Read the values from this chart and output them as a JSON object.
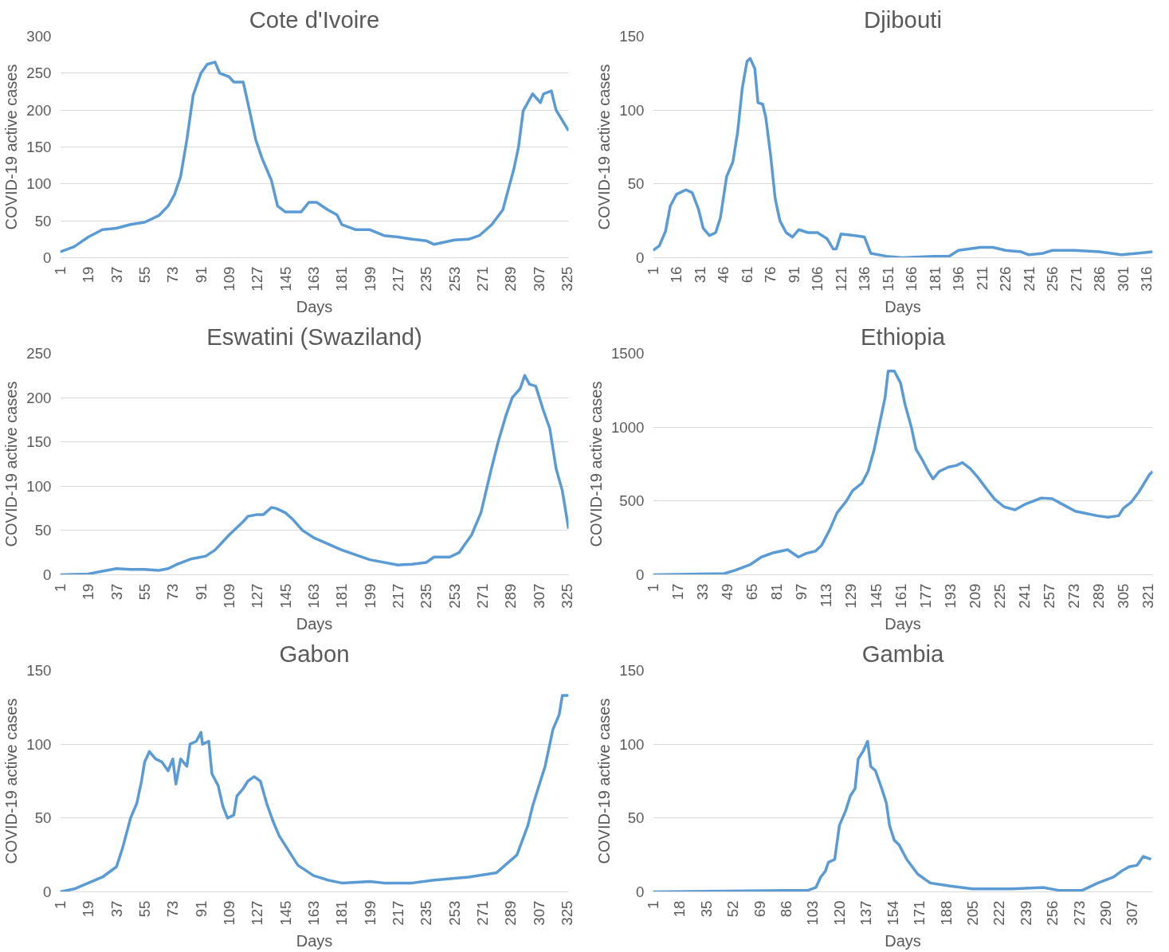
{
  "chart_data": [
    {
      "type": "line",
      "title": "Cote d'Ivoire",
      "xlabel": "Days",
      "ylabel": "COVID-19 active cases",
      "color": "#5b9bd5",
      "grid": "y",
      "line_style": "solid",
      "xlim": [
        1,
        326
      ],
      "ylim": [
        0,
        300
      ],
      "yticks": [
        0,
        50,
        100,
        150,
        200,
        250,
        300
      ],
      "xticks": [
        1,
        19,
        37,
        55,
        73,
        91,
        109,
        127,
        145,
        163,
        181,
        199,
        217,
        235,
        253,
        271,
        289,
        307,
        325
      ],
      "x": [
        1,
        10,
        19,
        28,
        37,
        46,
        55,
        64,
        70,
        74,
        78,
        82,
        86,
        91,
        95,
        100,
        103,
        109,
        112,
        118,
        122,
        126,
        130,
        136,
        140,
        145,
        155,
        160,
        165,
        172,
        178,
        181,
        190,
        199,
        208,
        217,
        226,
        235,
        240,
        253,
        262,
        269,
        277,
        284,
        291,
        294,
        297,
        303,
        308,
        310,
        315,
        318,
        326
      ],
      "values": [
        8,
        15,
        28,
        38,
        40,
        45,
        48,
        57,
        70,
        85,
        110,
        160,
        220,
        250,
        262,
        265,
        250,
        245,
        238,
        238,
        200,
        160,
        135,
        105,
        70,
        62,
        62,
        75,
        75,
        65,
        58,
        45,
        38,
        38,
        30,
        28,
        25,
        23,
        18,
        24,
        25,
        30,
        45,
        65,
        120,
        150,
        199,
        222,
        210,
        222,
        226,
        200,
        172
      ]
    },
    {
      "type": "line",
      "title": "Djibouti",
      "xlabel": "Days",
      "ylabel": "COVID-19 active cases",
      "color": "#5b9bd5",
      "grid": "y",
      "line_style": "solid",
      "xlim": [
        1,
        320
      ],
      "ylim": [
        0,
        150
      ],
      "yticks": [
        0,
        50,
        100,
        150
      ],
      "xticks": [
        1,
        16,
        31,
        46,
        61,
        76,
        91,
        106,
        121,
        136,
        151,
        166,
        181,
        196,
        211,
        226,
        241,
        256,
        271,
        286,
        301,
        316
      ],
      "x": [
        1,
        5,
        9,
        12,
        16,
        22,
        26,
        30,
        33,
        37,
        41,
        44,
        48,
        52,
        55,
        58,
        61,
        63,
        66,
        68,
        71,
        73,
        76,
        79,
        82,
        86,
        90,
        94,
        100,
        106,
        112,
        116,
        118,
        121,
        130,
        136,
        140,
        150,
        160,
        180,
        190,
        196,
        210,
        218,
        226,
        236,
        241,
        250,
        256,
        270,
        286,
        300,
        310,
        320
      ],
      "values": [
        5,
        8,
        18,
        35,
        43,
        46,
        44,
        33,
        20,
        15,
        17,
        27,
        55,
        65,
        85,
        115,
        133,
        135,
        128,
        105,
        104,
        95,
        70,
        40,
        25,
        17,
        14,
        19,
        17,
        17,
        13,
        6,
        6,
        16,
        15,
        14,
        3,
        1,
        0,
        1,
        1,
        5,
        7,
        7,
        5,
        4,
        2,
        3,
        5,
        5,
        4,
        2,
        3,
        4
      ]
    },
    {
      "type": "line",
      "title": "Eswatini (Swaziland)",
      "xlabel": "Days",
      "ylabel": "COVID-19 active cases",
      "color": "#5b9bd5",
      "grid": "y",
      "line_style": "solid",
      "xlim": [
        1,
        326
      ],
      "ylim": [
        0,
        250
      ],
      "yticks": [
        0,
        50,
        100,
        150,
        200,
        250
      ],
      "xticks": [
        1,
        19,
        37,
        55,
        73,
        91,
        109,
        127,
        145,
        163,
        181,
        199,
        217,
        235,
        253,
        271,
        289,
        307,
        325
      ],
      "x": [
        1,
        19,
        28,
        37,
        46,
        55,
        64,
        70,
        76,
        85,
        94,
        100,
        109,
        118,
        121,
        127,
        131,
        136,
        139,
        145,
        150,
        156,
        163,
        172,
        181,
        199,
        217,
        226,
        235,
        240,
        250,
        256,
        260,
        264,
        270,
        276,
        281,
        286,
        290,
        295,
        298,
        301,
        305,
        310,
        314,
        318,
        322,
        326
      ],
      "values": [
        0,
        1,
        4,
        7,
        6,
        6,
        5,
        7,
        12,
        18,
        21,
        28,
        45,
        60,
        66,
        68,
        68,
        76,
        75,
        70,
        62,
        50,
        42,
        35,
        28,
        17,
        11,
        12,
        14,
        20,
        20,
        25,
        35,
        45,
        70,
        115,
        150,
        180,
        200,
        210,
        225,
        215,
        213,
        185,
        165,
        120,
        95,
        52
      ]
    },
    {
      "type": "line",
      "title": "Ethiopia",
      "xlabel": "Days",
      "ylabel": "COVID-19 active cases",
      "color": "#5b9bd5",
      "grid": "y",
      "line_style": "solid",
      "xlim": [
        1,
        324
      ],
      "ylim": [
        0,
        1500
      ],
      "yticks": [
        0,
        500,
        1000,
        1500
      ],
      "xticks": [
        1,
        17,
        33,
        49,
        65,
        81,
        97,
        113,
        129,
        145,
        161,
        177,
        193,
        209,
        225,
        241,
        257,
        273,
        289,
        305,
        321
      ],
      "x": [
        1,
        47,
        54,
        64,
        71,
        79,
        88,
        95,
        100,
        106,
        110,
        115,
        120,
        126,
        130,
        136,
        140,
        144,
        147,
        151,
        153,
        157,
        161,
        164,
        168,
        171,
        175,
        179,
        182,
        186,
        192,
        197,
        201,
        206,
        211,
        216,
        222,
        228,
        235,
        242,
        252,
        259,
        267,
        274,
        281,
        288,
        295,
        302,
        305,
        310,
        315,
        322,
        324
      ],
      "values": [
        0,
        8,
        30,
        70,
        120,
        150,
        170,
        120,
        145,
        160,
        200,
        300,
        420,
        500,
        570,
        620,
        700,
        850,
        1000,
        1200,
        1380,
        1380,
        1300,
        1150,
        1000,
        850,
        780,
        700,
        650,
        700,
        730,
        740,
        760,
        720,
        660,
        590,
        510,
        460,
        440,
        480,
        520,
        515,
        470,
        430,
        415,
        400,
        390,
        400,
        450,
        490,
        560,
        680,
        700
      ]
    },
    {
      "type": "line",
      "title": "Gabon",
      "xlabel": "Days",
      "ylabel": "COVID-19 active cases",
      "color": "#5b9bd5",
      "grid": "y",
      "line_style": "solid",
      "xlim": [
        1,
        326
      ],
      "ylim": [
        0,
        150
      ],
      "yticks": [
        0,
        50,
        100,
        150
      ],
      "xticks": [
        1,
        19,
        37,
        55,
        73,
        91,
        109,
        127,
        145,
        163,
        181,
        199,
        217,
        235,
        253,
        271,
        289,
        307,
        325
      ],
      "x": [
        1,
        10,
        19,
        28,
        37,
        41,
        46,
        50,
        53,
        55,
        58,
        62,
        66,
        70,
        73,
        75,
        78,
        82,
        84,
        88,
        91,
        92,
        96,
        98,
        102,
        105,
        108,
        112,
        114,
        118,
        121,
        125,
        129,
        133,
        137,
        141,
        147,
        153,
        163,
        172,
        181,
        199,
        208,
        226,
        240,
        262,
        280,
        293,
        300,
        303,
        308,
        311,
        313,
        316,
        320,
        322,
        326
      ],
      "values": [
        0,
        2,
        6,
        10,
        17,
        30,
        50,
        60,
        75,
        88,
        95,
        90,
        88,
        82,
        90,
        73,
        90,
        85,
        100,
        102,
        108,
        100,
        102,
        80,
        72,
        58,
        50,
        52,
        65,
        70,
        75,
        78,
        75,
        60,
        48,
        38,
        28,
        18,
        11,
        8,
        6,
        7,
        6,
        6,
        8,
        10,
        13,
        25,
        45,
        58,
        75,
        85,
        95,
        110,
        120,
        133,
        133
      ]
    },
    {
      "type": "line",
      "title": "Gambia",
      "xlabel": "Days",
      "ylabel": "COVID-19 active cases",
      "color": "#5b9bd5",
      "grid": "y",
      "line_style": "solid",
      "xlim": [
        1,
        320
      ],
      "ylim": [
        0,
        150
      ],
      "yticks": [
        0,
        50,
        100,
        150
      ],
      "xticks": [
        1,
        18,
        35,
        52,
        69,
        86,
        103,
        120,
        137,
        154,
        171,
        188,
        205,
        222,
        239,
        256,
        273,
        290,
        307
      ],
      "x": [
        1,
        86,
        100,
        105,
        108,
        111,
        113,
        117,
        120,
        124,
        127,
        130,
        132,
        135,
        138,
        140,
        143,
        147,
        150,
        152,
        155,
        158,
        163,
        170,
        178,
        190,
        205,
        230,
        250,
        260,
        275,
        285,
        295,
        300,
        305,
        310,
        314,
        319
      ],
      "values": [
        0,
        1,
        1,
        3,
        10,
        14,
        20,
        22,
        45,
        55,
        65,
        70,
        90,
        95,
        102,
        85,
        82,
        70,
        60,
        45,
        35,
        32,
        22,
        12,
        6,
        4,
        2,
        2,
        3,
        1,
        1,
        6,
        10,
        14,
        17,
        18,
        24,
        22
      ]
    }
  ]
}
